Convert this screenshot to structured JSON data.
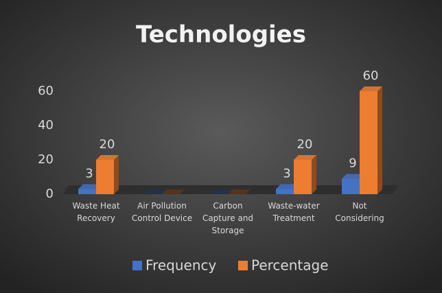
{
  "chart_data": {
    "type": "bar3d",
    "title": "Technologies",
    "categories": [
      "Waste Heat Recovery",
      "Air Pollution Control Device",
      "Carbon Capture and Storage",
      "Waste-water Treatment",
      "Not Considering"
    ],
    "series": [
      {
        "name": "Frequency",
        "color": "#4472c4",
        "values": [
          3,
          0,
          0,
          3,
          9
        ]
      },
      {
        "name": "Percentage",
        "color": "#ed7d31",
        "values": [
          20,
          0,
          0,
          20,
          60
        ]
      }
    ],
    "ylim": [
      0,
      70
    ],
    "yticks": [
      0,
      20,
      40,
      60
    ],
    "grid": false,
    "legend": "bottom"
  }
}
